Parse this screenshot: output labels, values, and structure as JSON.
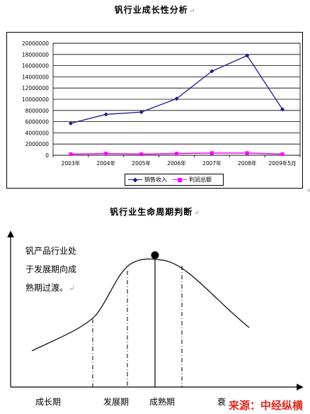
{
  "chart_title": "钒行业成长性分析",
  "paragraph_mark": "↵",
  "chart_data": {
    "type": "line",
    "categories": [
      "2003年",
      "2004年",
      "2005年",
      "2006年",
      "2007年",
      "2008年",
      "2009年5月"
    ],
    "series": [
      {
        "name": "销售收入",
        "color": "#1a1a8c",
        "marker": "diamond",
        "values": [
          5700000,
          7300000,
          7700000,
          10100000,
          15000000,
          17800000,
          8200000
        ]
      },
      {
        "name": "利润总额",
        "color": "#ff00ff",
        "marker": "square",
        "values": [
          200000,
          300000,
          200000,
          300000,
          400000,
          400000,
          200000
        ]
      }
    ],
    "ylim": [
      0,
      20000000
    ],
    "yticks": [
      0,
      2000000,
      4000000,
      6000000,
      8000000,
      10000000,
      12000000,
      14000000,
      16000000,
      18000000,
      20000000
    ],
    "grid": true,
    "legend_position": "bottom"
  },
  "anchor_mark": "+",
  "lifecycle_title": "钒行业生命周期判断",
  "lifecycle": {
    "description_lines": [
      "钒产品行业处",
      "于发展期向成",
      "熟期过渡。"
    ],
    "stages": [
      "成长期",
      "发展期",
      "成熟期",
      "衰"
    ]
  },
  "source": "来源：中经纵横"
}
